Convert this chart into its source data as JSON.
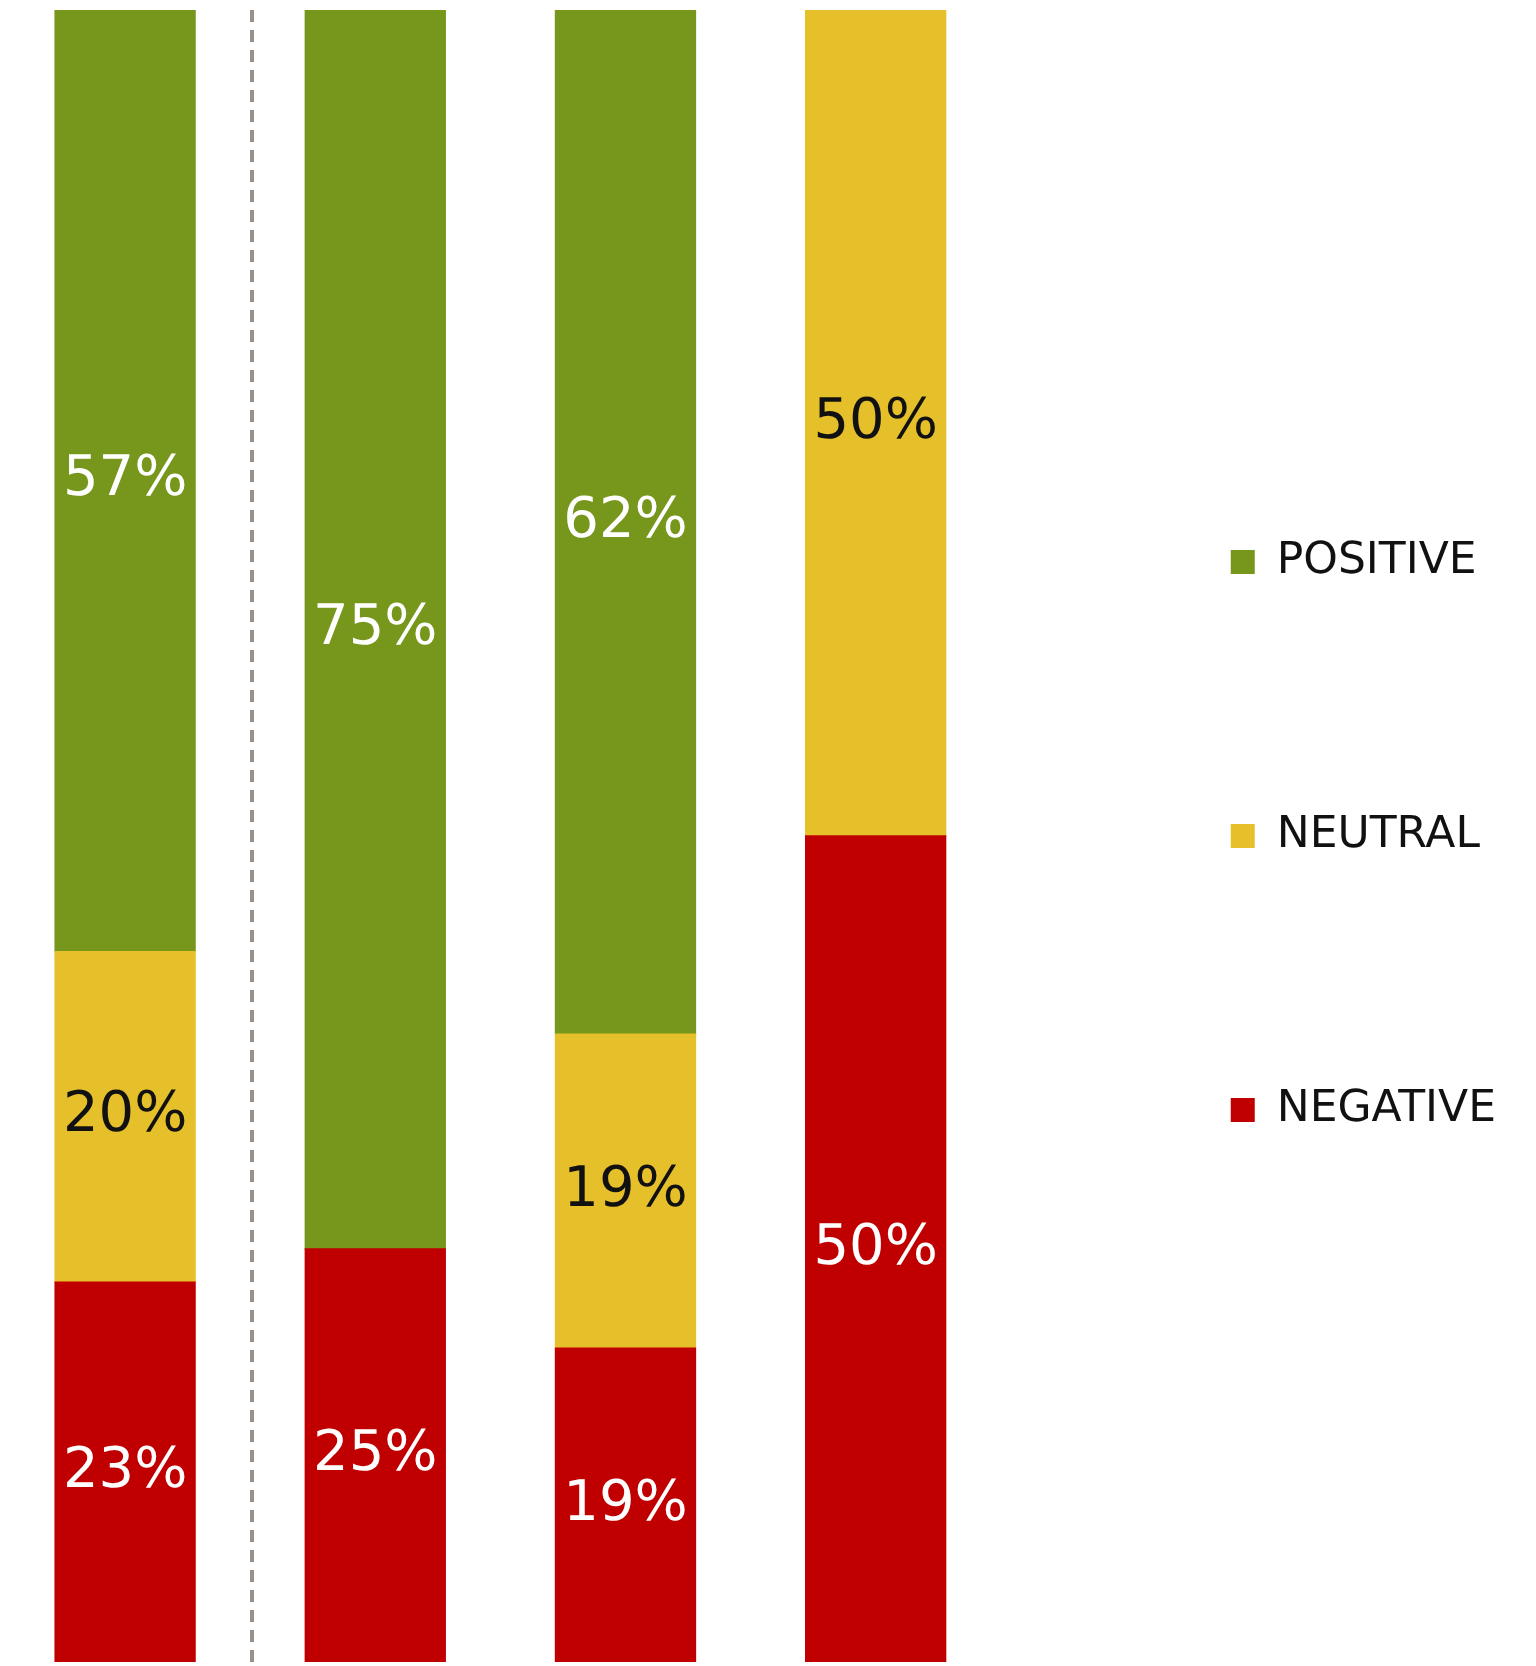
{
  "chart_data": {
    "type": "bar",
    "stacked": true,
    "categories": [
      null,
      null,
      null,
      null
    ],
    "series": [
      {
        "name": "NEGATIVE",
        "color": "#c00000",
        "values": [
          23,
          25,
          19,
          50
        ],
        "value_labels": [
          "23%",
          "25%",
          "19%",
          "50%"
        ]
      },
      {
        "name": "NEUTRAL",
        "color": "#e6c02a",
        "values": [
          20,
          null,
          19,
          50
        ],
        "value_labels": [
          "20%",
          null,
          "19%",
          "50%"
        ]
      },
      {
        "name": "POSITIVE",
        "color": "#76961c",
        "values": [
          57,
          75,
          62,
          null
        ],
        "value_labels": [
          "57%",
          "75%",
          "62%",
          null
        ]
      }
    ],
    "legend": "right"
  }
}
